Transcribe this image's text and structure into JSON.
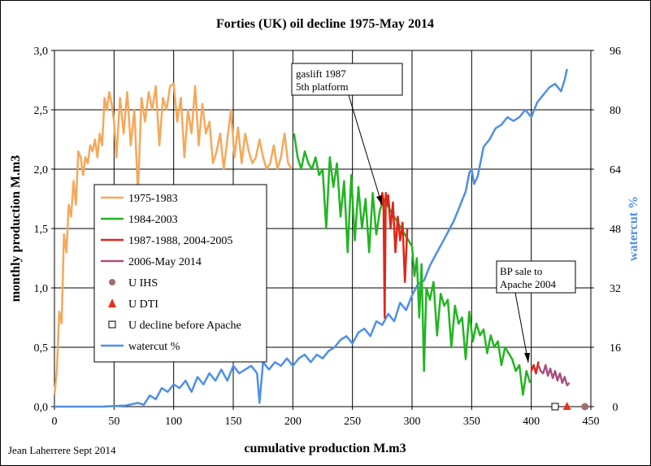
{
  "chart_data": {
    "type": "line",
    "title": "Forties (UK) oil decline 1975-May 2014",
    "xlabel": "cumulative production M.m3",
    "ylabel": "monthly production M.m3",
    "y2label": "watercut %",
    "credit": "Jean Laherrere Sept 2014",
    "xlim": [
      0,
      450
    ],
    "ylim": [
      0,
      3.0
    ],
    "y2lim": [
      0,
      96
    ],
    "x_ticks": [
      0,
      50,
      100,
      150,
      200,
      250,
      300,
      350,
      400,
      450
    ],
    "y_ticks": [
      "0,0",
      "0,5",
      "1,0",
      "1,5",
      "2,0",
      "2,5",
      "3,0"
    ],
    "y2_ticks": [
      0,
      16,
      32,
      48,
      64,
      80,
      96
    ],
    "grid": true,
    "legend_position": "left-center",
    "colors": {
      "s1975": "#F5A85A",
      "s1984": "#22B522",
      "s1987": "#E0261A",
      "s2006": "#A8507E",
      "ihs": "#9E6E6E",
      "dti": "#E8301A",
      "watercut": "#4F8FEA",
      "right_axis_text": "#4F8FEA"
    },
    "series": [
      {
        "name": "1975-1983",
        "axis": "left",
        "x": [
          0,
          2,
          4,
          6,
          8,
          10,
          12,
          14,
          16,
          18,
          20,
          22,
          24,
          26,
          28,
          30,
          32,
          34,
          36,
          38,
          40,
          42,
          44,
          46,
          48,
          50,
          52,
          55,
          58,
          61,
          64,
          67,
          70,
          73,
          76,
          79,
          82,
          85,
          88,
          91,
          94,
          97,
          100,
          103,
          106,
          109,
          112,
          115,
          118,
          121,
          124,
          127,
          130,
          133,
          136,
          139,
          142,
          145,
          148,
          151,
          154,
          157,
          160,
          163,
          166,
          169,
          172,
          175,
          178,
          181,
          184,
          187,
          190,
          193,
          196,
          199
        ],
        "y": [
          0.1,
          0.3,
          0.8,
          0.7,
          1.45,
          1.3,
          1.7,
          1.6,
          1.9,
          1.7,
          2.15,
          2.1,
          1.95,
          2.1,
          2.05,
          2.2,
          2.15,
          2.25,
          2.1,
          2.3,
          2.2,
          2.6,
          2.5,
          2.65,
          2.55,
          2.4,
          2.1,
          2.6,
          2.3,
          2.65,
          2.2,
          2.5,
          1.8,
          2.6,
          2.4,
          2.65,
          2.5,
          2.7,
          2.2,
          2.6,
          2.5,
          2.7,
          2.72,
          2.4,
          2.6,
          2.1,
          2.5,
          2.3,
          2.7,
          2.2,
          2.55,
          2.3,
          2.4,
          2.05,
          2.15,
          2.3,
          2.0,
          2.25,
          2.5,
          2.1,
          2.35,
          2.05,
          2.3,
          2.15,
          2.05,
          2.1,
          2.25,
          2.1,
          2.0,
          2.05,
          2.2,
          2.0,
          2.1,
          2.3,
          2.05,
          2.0
        ]
      },
      {
        "name": "1984-2003",
        "axis": "left",
        "x": [
          201,
          204,
          207,
          210,
          213,
          216,
          219,
          222,
          225,
          228,
          231,
          234,
          237,
          240,
          243,
          246,
          249,
          252,
          255,
          258,
          261,
          264,
          267,
          270,
          273,
          276,
          300,
          302,
          304,
          306,
          308,
          310,
          312,
          315,
          318,
          321,
          324,
          327,
          330,
          333,
          336,
          339,
          342,
          345,
          348,
          351,
          354,
          357,
          360,
          363,
          366,
          369,
          372,
          375,
          378,
          381,
          384,
          387,
          390,
          393,
          396,
          399
        ],
        "y": [
          2.3,
          2.1,
          2.0,
          2.15,
          2.05,
          2.0,
          2.1,
          1.95,
          2.0,
          1.5,
          2.1,
          1.85,
          2.05,
          1.6,
          1.9,
          1.3,
          1.95,
          1.4,
          1.85,
          1.5,
          1.75,
          1.3,
          1.8,
          1.45,
          1.65,
          1.75,
          1.35,
          1.1,
          1.25,
          0.75,
          1.2,
          0.3,
          1.0,
          0.9,
          1.05,
          0.6,
          0.95,
          0.85,
          0.9,
          0.5,
          0.85,
          0.7,
          0.75,
          0.4,
          0.8,
          0.55,
          0.7,
          0.6,
          0.65,
          0.45,
          0.6,
          0.5,
          0.55,
          0.35,
          0.5,
          0.45,
          0.4,
          0.3,
          0.35,
          0.1,
          0.3,
          0.2
        ]
      },
      {
        "name": "1987-1988, 2004-2005",
        "axis": "left",
        "x": [
          274,
          275,
          276,
          277,
          278,
          279,
          280,
          282,
          284,
          286,
          288,
          290,
          292,
          294,
          296,
          400,
          402,
          404,
          406
        ],
        "y": [
          1.7,
          1.8,
          1.75,
          0.75,
          1.8,
          1.7,
          1.78,
          1.5,
          1.72,
          1.3,
          1.6,
          1.4,
          1.55,
          1.05,
          1.5,
          0.3,
          0.35,
          0.28,
          0.38
        ]
      },
      {
        "name": "2006-May 2014",
        "axis": "left",
        "x": [
          406,
          408,
          410,
          412,
          414,
          416,
          418,
          420,
          422,
          424,
          426,
          428,
          430,
          432
        ],
        "y": [
          0.35,
          0.3,
          0.28,
          0.35,
          0.26,
          0.32,
          0.24,
          0.3,
          0.22,
          0.28,
          0.2,
          0.25,
          0.18,
          0.2
        ]
      },
      {
        "name": "U IHS",
        "axis": "left",
        "marker": "circle",
        "x": [
          445
        ],
        "y": [
          0
        ]
      },
      {
        "name": "U DTI",
        "axis": "left",
        "marker": "triangle",
        "x": [
          430
        ],
        "y": [
          0
        ]
      },
      {
        "name": "U decline before Apache",
        "axis": "left",
        "marker": "square",
        "x": [
          420
        ],
        "y": [
          0
        ]
      },
      {
        "name": "watercut %",
        "axis": "right",
        "x": [
          0,
          20,
          40,
          60,
          70,
          75,
          80,
          85,
          90,
          95,
          100,
          105,
          110,
          115,
          120,
          125,
          130,
          135,
          140,
          145,
          150,
          155,
          160,
          165,
          170,
          172,
          175,
          180,
          185,
          190,
          195,
          200,
          205,
          210,
          215,
          220,
          225,
          230,
          235,
          240,
          245,
          250,
          255,
          260,
          265,
          270,
          275,
          280,
          285,
          290,
          295,
          300,
          305,
          310,
          315,
          320,
          325,
          330,
          335,
          340,
          345,
          348,
          350,
          352,
          355,
          360,
          365,
          370,
          375,
          380,
          385,
          390,
          395,
          400,
          405,
          410,
          415,
          420,
          425,
          428,
          430
        ],
        "y": [
          0,
          0,
          0,
          0.3,
          1,
          0.5,
          3,
          2,
          5,
          4,
          6,
          5,
          7,
          4,
          8,
          6,
          9,
          7,
          10,
          7,
          11,
          9,
          10,
          11,
          9,
          1,
          12,
          10,
          12,
          11,
          13,
          11,
          13,
          14,
          12,
          14,
          13,
          15,
          16,
          18,
          19,
          17,
          20,
          21,
          19,
          23,
          22,
          25,
          23,
          28,
          26,
          30,
          33,
          34,
          38,
          41,
          44,
          47,
          50,
          54,
          58,
          63,
          64,
          60,
          62,
          70,
          72,
          75,
          76,
          78,
          77,
          78,
          80,
          78,
          82,
          84,
          86,
          87,
          85,
          88,
          91
        ]
      }
    ]
  },
  "annotations": {
    "gaslift": [
      "gaslift 1987",
      "5th platform"
    ],
    "bp": [
      "BP sale to",
      "Apache 2004"
    ]
  }
}
